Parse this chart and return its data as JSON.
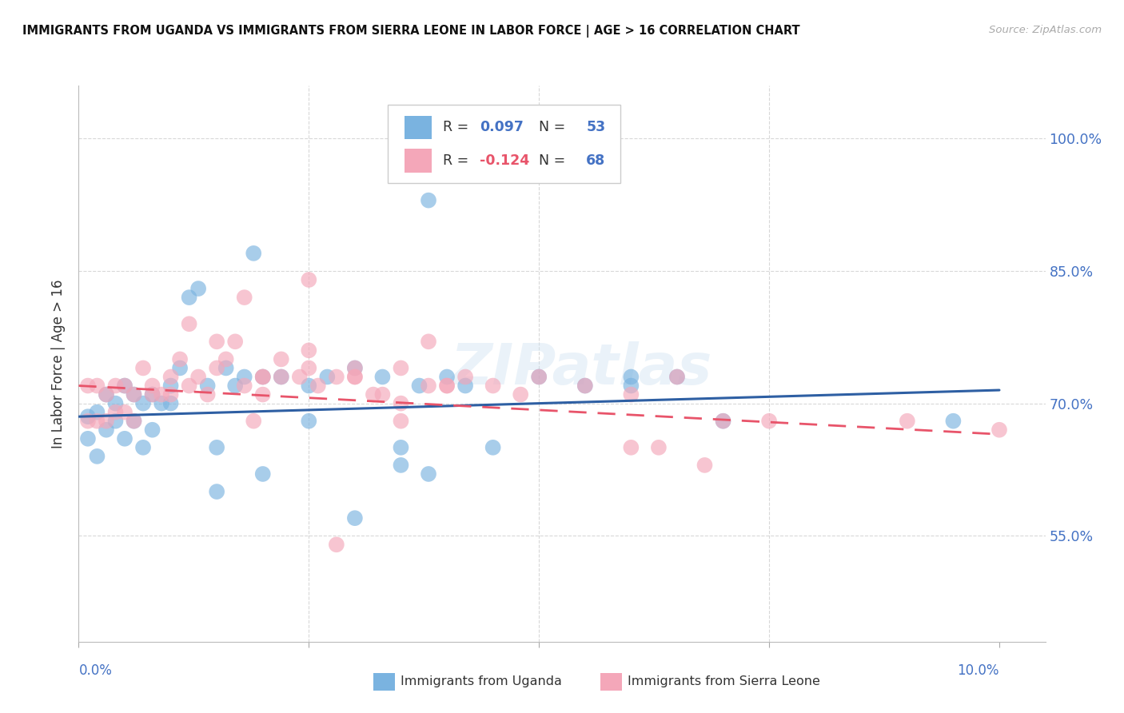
{
  "title": "IMMIGRANTS FROM UGANDA VS IMMIGRANTS FROM SIERRA LEONE IN LABOR FORCE | AGE > 16 CORRELATION CHART",
  "source": "Source: ZipAtlas.com",
  "ylabel": "In Labor Force | Age > 16",
  "ytick_labels": [
    "55.0%",
    "70.0%",
    "85.0%",
    "100.0%"
  ],
  "ytick_values": [
    0.55,
    0.7,
    0.85,
    1.0
  ],
  "xlim": [
    0.0,
    0.105
  ],
  "ylim": [
    0.43,
    1.06
  ],
  "r_uganda": "0.097",
  "n_uganda": "53",
  "r_sierra": "-0.124",
  "n_sierra": "68",
  "color_uganda": "#7ab3e0",
  "color_sierra": "#f4a7b9",
  "color_trend_uganda": "#2e5fa3",
  "color_trend_sierra": "#e8546a",
  "watermark": "ZIPatlas",
  "uganda_x": [
    0.001,
    0.001,
    0.002,
    0.002,
    0.003,
    0.003,
    0.004,
    0.004,
    0.005,
    0.005,
    0.006,
    0.006,
    0.007,
    0.007,
    0.008,
    0.008,
    0.009,
    0.01,
    0.01,
    0.011,
    0.012,
    0.013,
    0.014,
    0.015,
    0.016,
    0.017,
    0.018,
    0.019,
    0.02,
    0.022,
    0.025,
    0.027,
    0.03,
    0.033,
    0.037,
    0.04,
    0.042,
    0.045,
    0.05,
    0.055,
    0.06,
    0.065,
    0.07,
    0.038,
    0.015,
    0.02,
    0.025,
    0.03,
    0.035,
    0.035,
    0.06,
    0.038,
    0.095
  ],
  "uganda_y": [
    0.685,
    0.66,
    0.69,
    0.64,
    0.71,
    0.67,
    0.7,
    0.68,
    0.72,
    0.66,
    0.71,
    0.68,
    0.7,
    0.65,
    0.71,
    0.67,
    0.7,
    0.72,
    0.7,
    0.74,
    0.82,
    0.83,
    0.72,
    0.65,
    0.74,
    0.72,
    0.73,
    0.87,
    0.73,
    0.73,
    0.72,
    0.73,
    0.74,
    0.73,
    0.72,
    0.73,
    0.72,
    0.65,
    0.73,
    0.72,
    0.72,
    0.73,
    0.68,
    0.62,
    0.6,
    0.62,
    0.68,
    0.57,
    0.65,
    0.63,
    0.73,
    0.93,
    0.68
  ],
  "sierra_x": [
    0.001,
    0.001,
    0.002,
    0.002,
    0.003,
    0.003,
    0.004,
    0.004,
    0.005,
    0.005,
    0.006,
    0.006,
    0.007,
    0.008,
    0.008,
    0.009,
    0.01,
    0.01,
    0.011,
    0.012,
    0.012,
    0.013,
    0.014,
    0.015,
    0.016,
    0.017,
    0.018,
    0.019,
    0.02,
    0.02,
    0.022,
    0.024,
    0.025,
    0.026,
    0.028,
    0.03,
    0.032,
    0.033,
    0.035,
    0.038,
    0.04,
    0.042,
    0.045,
    0.048,
    0.05,
    0.055,
    0.06,
    0.065,
    0.07,
    0.075,
    0.06,
    0.025,
    0.03,
    0.035,
    0.04,
    0.035,
    0.025,
    0.018,
    0.022,
    0.03,
    0.038,
    0.063,
    0.068,
    0.09,
    0.1,
    0.015,
    0.02,
    0.028
  ],
  "sierra_y": [
    0.72,
    0.68,
    0.72,
    0.68,
    0.71,
    0.68,
    0.72,
    0.69,
    0.72,
    0.69,
    0.71,
    0.68,
    0.74,
    0.71,
    0.72,
    0.71,
    0.73,
    0.71,
    0.75,
    0.72,
    0.79,
    0.73,
    0.71,
    0.77,
    0.75,
    0.77,
    0.72,
    0.68,
    0.73,
    0.73,
    0.75,
    0.73,
    0.84,
    0.72,
    0.73,
    0.73,
    0.71,
    0.71,
    0.74,
    0.77,
    0.72,
    0.73,
    0.72,
    0.71,
    0.73,
    0.72,
    0.65,
    0.73,
    0.68,
    0.68,
    0.71,
    0.76,
    0.73,
    0.7,
    0.72,
    0.68,
    0.74,
    0.82,
    0.73,
    0.74,
    0.72,
    0.65,
    0.63,
    0.68,
    0.67,
    0.74,
    0.71,
    0.54
  ]
}
